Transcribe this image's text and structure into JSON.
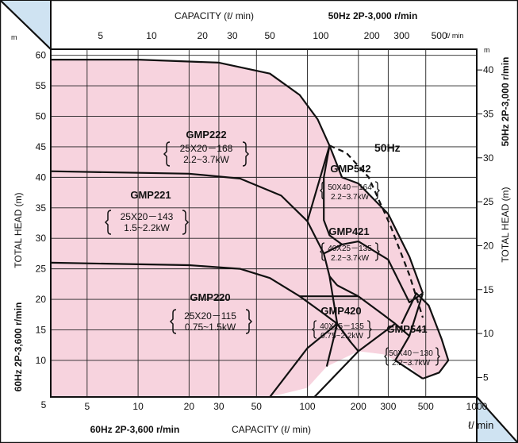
{
  "chart_data": {
    "type": "area",
    "x_scale": "log",
    "bottom_axis": {
      "title": "CAPACITY (ℓ/ min)",
      "note": "60Hz 2P-3,600 r/min",
      "ticks": [
        5,
        10,
        20,
        30,
        50,
        100,
        200,
        300,
        500,
        1000
      ],
      "tick_labels": [
        "5",
        "10",
        "20",
        "30",
        "50",
        "100",
        "200",
        "300",
        "500",
        "1000"
      ],
      "unit": "ℓ/ min"
    },
    "top_axis": {
      "title": "CAPACITY (ℓ/ min)",
      "note": "50Hz 2P-3,000 r/min",
      "ticks": [
        5,
        10,
        20,
        30,
        50,
        100,
        200,
        300,
        500
      ],
      "tick_labels": [
        "5",
        "10",
        "20",
        "30",
        "50",
        "100",
        "200",
        "300",
        "500"
      ],
      "unit": "ℓ/ min"
    },
    "left_axis": {
      "title": "TOTAL HEAD (m)",
      "note": "60Hz 2P-3,600 r/min",
      "unit": "m",
      "range": [
        4,
        61
      ],
      "ticks": [
        10,
        15,
        20,
        25,
        30,
        35,
        40,
        45,
        50,
        55,
        60
      ],
      "tick_labels": [
        "10",
        "15",
        "20",
        "25",
        "30",
        "35",
        "40",
        "45",
        "50",
        "55",
        "60"
      ],
      "corner_label": "5"
    },
    "right_axis": {
      "title": "TOTAL HEAD (m)",
      "note": "50Hz 2P-3,000 r/min",
      "unit": "m",
      "ticks": [
        5,
        10,
        15,
        20,
        25,
        30,
        35,
        40
      ],
      "tick_labels": [
        "5",
        "10",
        "15",
        "20",
        "25",
        "30",
        "35",
        "40"
      ]
    },
    "curve_label": "50Hz",
    "series": [
      {
        "name": "GMP222",
        "spec": [
          "25X20－168",
          "2.2~3.7kW"
        ],
        "top_curve": [
          [
            3.05,
            59.3
          ],
          [
            10,
            59.3
          ],
          [
            30,
            58.8
          ],
          [
            60,
            57
          ],
          [
            90,
            53.5
          ],
          [
            115,
            49.5
          ],
          [
            135,
            45.2
          ]
        ]
      },
      {
        "name": "GMP221",
        "spec": [
          "25X20－143",
          "1.5~2.2kW"
        ],
        "top_curve": [
          [
            3.05,
            41
          ],
          [
            20,
            40.6
          ],
          [
            40,
            39.8
          ],
          [
            70,
            37
          ],
          [
            100,
            32.8
          ],
          [
            125,
            27.5
          ],
          [
            135,
            23.8
          ],
          [
            150,
            22.3
          ]
        ]
      },
      {
        "name": "GMP220",
        "spec": [
          "25X20－115",
          "0.75~1.5kW"
        ],
        "top_curve": [
          [
            3.05,
            26
          ],
          [
            20,
            25.6
          ],
          [
            40,
            25
          ],
          [
            60,
            23.5
          ],
          [
            90,
            20.5
          ],
          [
            120,
            18
          ],
          [
            150,
            16
          ],
          [
            180,
            13
          ],
          [
            200,
            11.5
          ]
        ]
      },
      {
        "name": "GMP542",
        "spec": [
          "50X40－164",
          "2.2~3.7kW"
        ],
        "top_curve": [
          [
            100,
            32.8
          ],
          [
            135,
            45.2
          ],
          [
            160,
            40
          ],
          [
            200,
            39
          ],
          [
            300,
            34
          ],
          [
            400,
            27
          ],
          [
            480,
            21
          ]
        ]
      },
      {
        "name": "GMP421",
        "spec": [
          "40X25－135",
          "2.2~3.7kW"
        ],
        "top_curve": [
          [
            125,
            27.5
          ],
          [
            160,
            29
          ],
          [
            200,
            29.5
          ],
          [
            300,
            26.5
          ],
          [
            400,
            19.5
          ],
          [
            480,
            21
          ]
        ]
      },
      {
        "name": "GMP420",
        "spec": [
          "40X25－135",
          "0.75~2.2kW"
        ],
        "top_curve": [
          [
            90,
            20.5
          ],
          [
            200,
            20.5
          ],
          [
            280,
            17.5
          ],
          [
            330,
            16
          ],
          [
            400,
            14
          ]
        ]
      },
      {
        "name": "GMP541",
        "spec": [
          "50X40－130",
          "2.2~3.7kW"
        ],
        "top_curve": [
          [
            360,
            16
          ],
          [
            440,
            21
          ],
          [
            520,
            19
          ],
          [
            620,
            13.5
          ],
          [
            680,
            10
          ],
          [
            600,
            8
          ],
          [
            480,
            7
          ]
        ]
      }
    ],
    "fill_color": "#f7d3de",
    "grid": true
  }
}
